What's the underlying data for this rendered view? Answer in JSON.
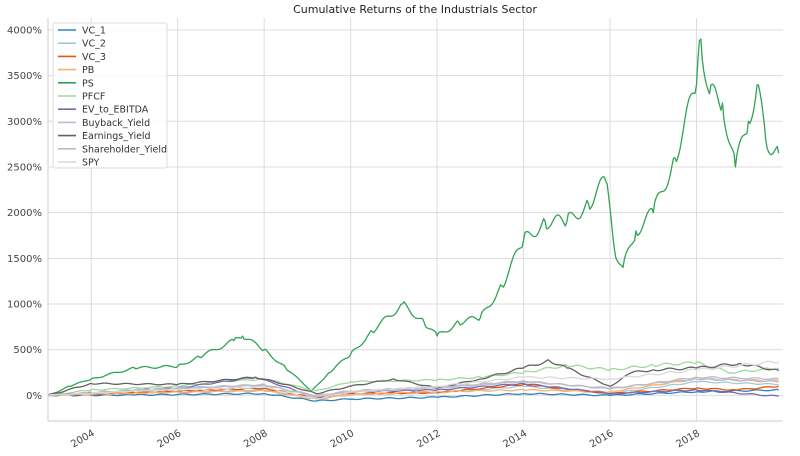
{
  "chart_data": {
    "type": "line",
    "title": "Cumulative Returns of the Industrials Sector",
    "xlabel": "",
    "ylabel": "",
    "xlim": [
      2003.0,
      2020.0
    ],
    "ylim": [
      -280,
      4130
    ],
    "xticks": [
      "2004",
      "2006",
      "2008",
      "2010",
      "2012",
      "2014",
      "2016",
      "2018"
    ],
    "xtick_values": [
      2004,
      2006,
      2008,
      2010,
      2012,
      2014,
      2016,
      2018
    ],
    "yticks": [
      "0%",
      "500%",
      "1000%",
      "1500%",
      "2000%",
      "2500%",
      "3000%",
      "3500%",
      "4000%"
    ],
    "ytick_values": [
      0,
      500,
      1000,
      1500,
      2000,
      2500,
      3000,
      3500,
      4000
    ],
    "grid": true,
    "legend_position": "top-left",
    "series": [
      {
        "name": "VC_1",
        "color": "#3182bd",
        "x": [
          2003,
          2005,
          2008,
          2009.2,
          2010,
          2012,
          2014,
          2016,
          2018,
          2019.9
        ],
        "y": [
          0,
          5,
          20,
          -60,
          -40,
          -20,
          20,
          0,
          40,
          60
        ]
      },
      {
        "name": "VC_2",
        "color": "#9ecae1",
        "x": [
          2003,
          2005,
          2008,
          2009.2,
          2010,
          2012,
          2014,
          2016,
          2018,
          2019.9
        ],
        "y": [
          0,
          30,
          60,
          -30,
          10,
          30,
          100,
          20,
          150,
          120
        ]
      },
      {
        "name": "VC_3",
        "color": "#e6550d",
        "x": [
          2003,
          2005,
          2008,
          2009.2,
          2010,
          2012,
          2014,
          2016,
          2018,
          2018.9,
          2019.9
        ],
        "y": [
          0,
          30,
          80,
          -30,
          20,
          30,
          120,
          20,
          80,
          60,
          100
        ]
      },
      {
        "name": "PB",
        "color": "#fdae6b",
        "x": [
          2003,
          2005,
          2008,
          2009.2,
          2010,
          2012,
          2014,
          2016,
          2018,
          2019.9
        ],
        "y": [
          0,
          25,
          50,
          -40,
          10,
          40,
          60,
          40,
          180,
          150
        ]
      },
      {
        "name": "PS",
        "color": "#31a354",
        "x": [
          2003,
          2003.5,
          2004,
          2005,
          2006,
          2006.5,
          2007.3,
          2007.5,
          2008,
          2008.5,
          2009.1,
          2009.5,
          2010,
          2010.5,
          2011.2,
          2011.7,
          2012,
          2012.5,
          2013,
          2013.5,
          2014,
          2014.5,
          2015,
          2015.5,
          2015.9,
          2016.1,
          2016.3,
          2016.6,
          2017,
          2017.5,
          2018,
          2018.1,
          2018.3,
          2018.6,
          2018.9,
          2019.2,
          2019.4,
          2019.6,
          2019.9
        ],
        "y": [
          0,
          100,
          180,
          300,
          320,
          420,
          600,
          650,
          500,
          300,
          50,
          250,
          450,
          700,
          1000,
          800,
          650,
          800,
          850,
          1200,
          1700,
          1900,
          1900,
          2100,
          2350,
          1600,
          1400,
          1800,
          2000,
          2600,
          3400,
          3900,
          3300,
          3200,
          2500,
          3000,
          3400,
          2800,
          2650
        ]
      },
      {
        "name": "PFCF",
        "color": "#a1d99b",
        "x": [
          2003,
          2004,
          2006,
          2007,
          2008,
          2009.2,
          2010,
          2012,
          2013,
          2014,
          2015,
          2016,
          2017,
          2018,
          2018.8,
          2019.9
        ],
        "y": [
          0,
          60,
          100,
          150,
          180,
          50,
          150,
          170,
          200,
          250,
          330,
          280,
          330,
          360,
          250,
          300
        ]
      },
      {
        "name": "EV_to_EBITDA",
        "color": "#756bb1",
        "x": [
          2003,
          2004,
          2006,
          2007.8,
          2009.2,
          2010,
          2012,
          2014,
          2016,
          2018,
          2019.9
        ],
        "y": [
          0,
          30,
          80,
          200,
          -20,
          40,
          60,
          130,
          20,
          60,
          -10
        ]
      },
      {
        "name": "Buyback_Yield",
        "color": "#bcbddc",
        "x": [
          2003,
          2005,
          2008,
          2009.2,
          2010,
          2012,
          2014,
          2016,
          2018,
          2019.9
        ],
        "y": [
          0,
          60,
          120,
          -20,
          40,
          80,
          150,
          80,
          180,
          160
        ]
      },
      {
        "name": "Earnings_Yield",
        "color": "#636363",
        "x": [
          2003,
          2004,
          2006,
          2007.8,
          2008.5,
          2009.2,
          2010,
          2011,
          2012,
          2013,
          2014,
          2014.6,
          2015,
          2016,
          2016.5,
          2017,
          2018,
          2019,
          2019.9
        ],
        "y": [
          0,
          130,
          120,
          200,
          120,
          20,
          100,
          180,
          80,
          180,
          300,
          380,
          300,
          100,
          250,
          280,
          300,
          350,
          270
        ]
      },
      {
        "name": "Shareholder_Yield",
        "color": "#bdbdbd",
        "x": [
          2003,
          2005,
          2008,
          2009.2,
          2010,
          2012,
          2014,
          2016,
          2018,
          2019.9
        ],
        "y": [
          0,
          50,
          110,
          0,
          50,
          90,
          160,
          70,
          200,
          180
        ]
      },
      {
        "name": "SPY",
        "color": "#d9d9d9",
        "x": [
          2003,
          2005,
          2008,
          2009.2,
          2010,
          2012,
          2014,
          2016,
          2018,
          2019.9
        ],
        "y": [
          0,
          50,
          90,
          -40,
          40,
          100,
          200,
          180,
          280,
          370
        ]
      }
    ]
  }
}
